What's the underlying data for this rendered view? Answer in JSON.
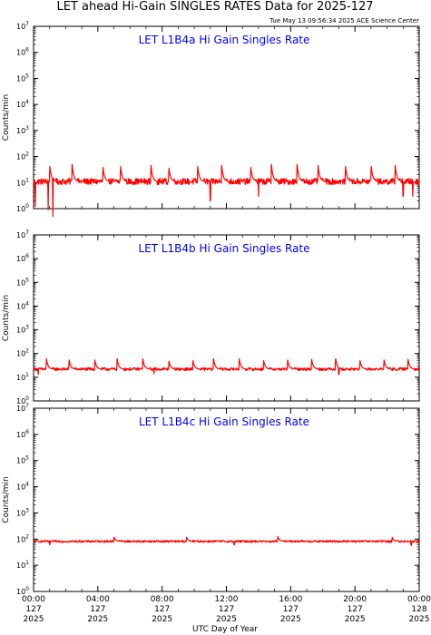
{
  "title": "LET ahead Hi-Gain SINGLES RATES Data for 2025-127",
  "timestamp": "Tue May 13 09:56:34 2025 ACE Science Center",
  "colors": {
    "series": "#ff0000",
    "panel_title": "#0000ff",
    "axis": "#000000"
  },
  "chart_data": [
    {
      "type": "line",
      "title": "LET L1B4a Hi Gain Singles Rate",
      "ylabel": "Counts/min",
      "yscale": "log",
      "ylim": [
        1,
        10000000
      ],
      "xlim": [
        0,
        24
      ],
      "y_ticks": [
        {
          "base": "10",
          "exp": "0"
        },
        {
          "base": "10",
          "exp": "1"
        },
        {
          "base": "10",
          "exp": "2"
        },
        {
          "base": "10",
          "exp": "3"
        },
        {
          "base": "10",
          "exp": "4"
        },
        {
          "base": "10",
          "exp": "5"
        },
        {
          "base": "10",
          "exp": "6"
        },
        {
          "base": "10",
          "exp": "7"
        }
      ],
      "series": [
        {
          "baseline": 11,
          "noise_decades": 0.12,
          "spike_hours": [
            1.0,
            2.4,
            4.3,
            5.4,
            7.3,
            8.4,
            10.2,
            11.7,
            13.5,
            14.8,
            16.4,
            17.7,
            19.4,
            21.0,
            22.5
          ],
          "spike_peak": 50,
          "dips": [
            {
              "hour": 0.1,
              "value": 1.2
            },
            {
              "hour": 0.9,
              "value": 0.9
            },
            {
              "hour": 1.2,
              "value": 0.5
            },
            {
              "hour": 11.0,
              "value": 2.0
            },
            {
              "hour": 14.0,
              "value": 3.0
            },
            {
              "hour": 23.0,
              "value": 3.0
            },
            {
              "hour": 23.6,
              "value": 3.0
            }
          ]
        }
      ]
    },
    {
      "type": "line",
      "title": "LET L1B4b Hi Gain Singles Rate",
      "ylabel": "Counts/min",
      "yscale": "log",
      "ylim": [
        1,
        10000000
      ],
      "xlim": [
        0,
        24
      ],
      "y_ticks": [
        {
          "base": "10",
          "exp": "0"
        },
        {
          "base": "10",
          "exp": "1"
        },
        {
          "base": "10",
          "exp": "2"
        },
        {
          "base": "10",
          "exp": "3"
        },
        {
          "base": "10",
          "exp": "4"
        },
        {
          "base": "10",
          "exp": "5"
        },
        {
          "base": "10",
          "exp": "6"
        },
        {
          "base": "10",
          "exp": "7"
        }
      ],
      "series": [
        {
          "baseline": 22,
          "noise_decades": 0.06,
          "spike_hours": [
            0.8,
            2.2,
            3.8,
            5.2,
            6.8,
            8.4,
            9.9,
            11.2,
            12.8,
            14.3,
            15.8,
            17.3,
            18.8,
            20.3,
            21.8,
            23.3
          ],
          "spike_peak": 60,
          "dips": [
            {
              "hour": 0.3,
              "value": 13
            },
            {
              "hour": 7.5,
              "value": 14
            },
            {
              "hour": 19.0,
              "value": 13
            }
          ]
        }
      ]
    },
    {
      "type": "line",
      "title": "LET L1B4c Hi Gain Singles Rate",
      "ylabel": "Counts/min",
      "yscale": "log",
      "ylim": [
        1,
        10000000
      ],
      "xlim": [
        0,
        24
      ],
      "y_ticks": [
        {
          "base": "10",
          "exp": "0"
        },
        {
          "base": "10",
          "exp": "1"
        },
        {
          "base": "10",
          "exp": "2"
        },
        {
          "base": "10",
          "exp": "3"
        },
        {
          "base": "10",
          "exp": "4"
        },
        {
          "base": "10",
          "exp": "5"
        },
        {
          "base": "10",
          "exp": "6"
        },
        {
          "base": "10",
          "exp": "7"
        }
      ],
      "series": [
        {
          "baseline": 82,
          "noise_decades": 0.04,
          "spike_hours": [
            5.0,
            9.5,
            15.2,
            22.3
          ],
          "spike_peak": 125,
          "dips": [
            {
              "hour": 1.0,
              "value": 62
            },
            {
              "hour": 12.5,
              "value": 60
            },
            {
              "hour": 23.5,
              "value": 58
            }
          ]
        }
      ]
    }
  ],
  "x_axis": {
    "label": "UTC Day of Year",
    "ticks": [
      {
        "hour": 0,
        "time": "00:00",
        "doy": "127",
        "year": "2025"
      },
      {
        "hour": 4,
        "time": "04:00",
        "doy": "127",
        "year": "2025"
      },
      {
        "hour": 8,
        "time": "08:00",
        "doy": "127",
        "year": "2025"
      },
      {
        "hour": 12,
        "time": "12:00",
        "doy": "127",
        "year": "2025"
      },
      {
        "hour": 16,
        "time": "16:00",
        "doy": "127",
        "year": "2025"
      },
      {
        "hour": 20,
        "time": "20:00",
        "doy": "127",
        "year": "2025"
      },
      {
        "hour": 24,
        "time": "00:00",
        "doy": "128",
        "year": "2025"
      }
    ]
  }
}
